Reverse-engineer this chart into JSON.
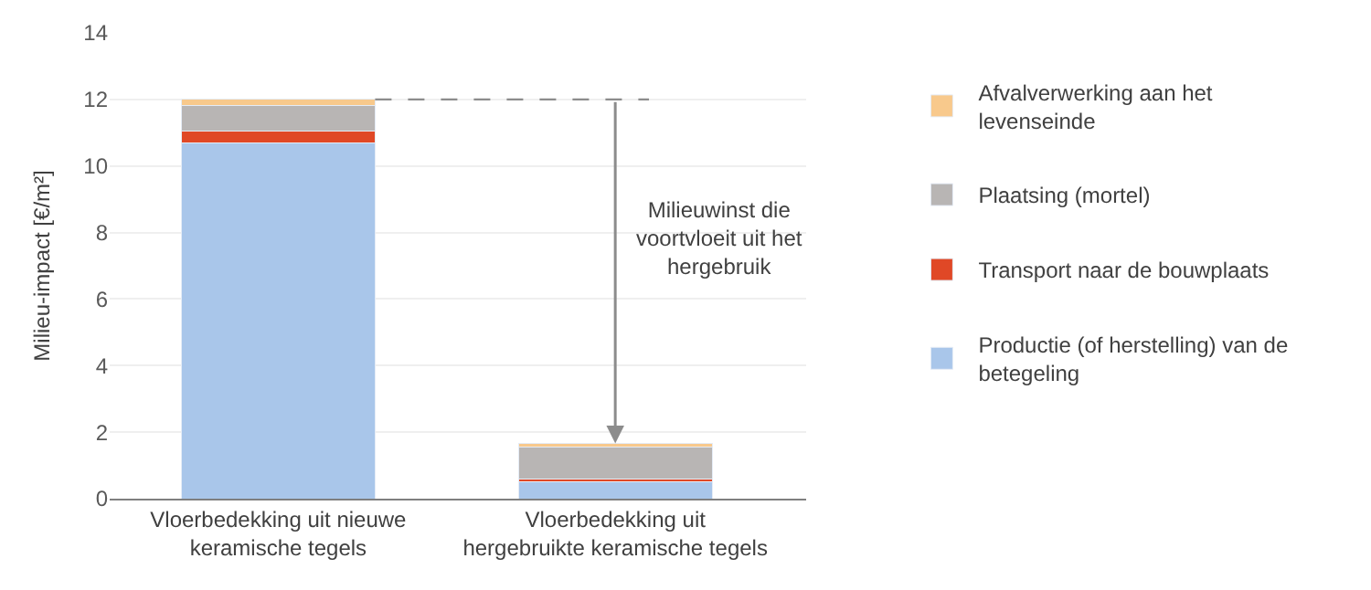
{
  "chart_data": {
    "type": "bar",
    "stacked": true,
    "ylabel": "Milieu-impact [€/m²]",
    "categories": [
      "Vloerbedekking uit nieuwe keramische tegels",
      "Vloerbedekking uit hergebruikte keramische tegels"
    ],
    "series": [
      {
        "name": "Productie (of herstelling) van de betegeling",
        "color": "#a9c6ea",
        "values": [
          10.7,
          0.5
        ]
      },
      {
        "name": "Transport naar de bouwplaats",
        "color": "#e04826",
        "values": [
          0.35,
          0.1
        ]
      },
      {
        "name": "Plaatsing (mortel)",
        "color": "#b8b5b4",
        "values": [
          0.78,
          0.96
        ]
      },
      {
        "name": "Afvalverwerking aan het levenseinde",
        "color": "#f8c98c",
        "values": [
          0.17,
          0.1
        ]
      }
    ],
    "ref_lines": [
      {
        "axis": "y",
        "value": 12,
        "color": "#8c8c8c",
        "line_style": "dashed"
      }
    ],
    "ylim": [
      0,
      14
    ],
    "yticks": [
      0,
      2,
      4,
      6,
      8,
      10,
      12,
      14
    ],
    "grid": "y",
    "legend": "right",
    "annotations": [
      "Milieuwinst die voortvloeit uit het hergebruik"
    ]
  }
}
